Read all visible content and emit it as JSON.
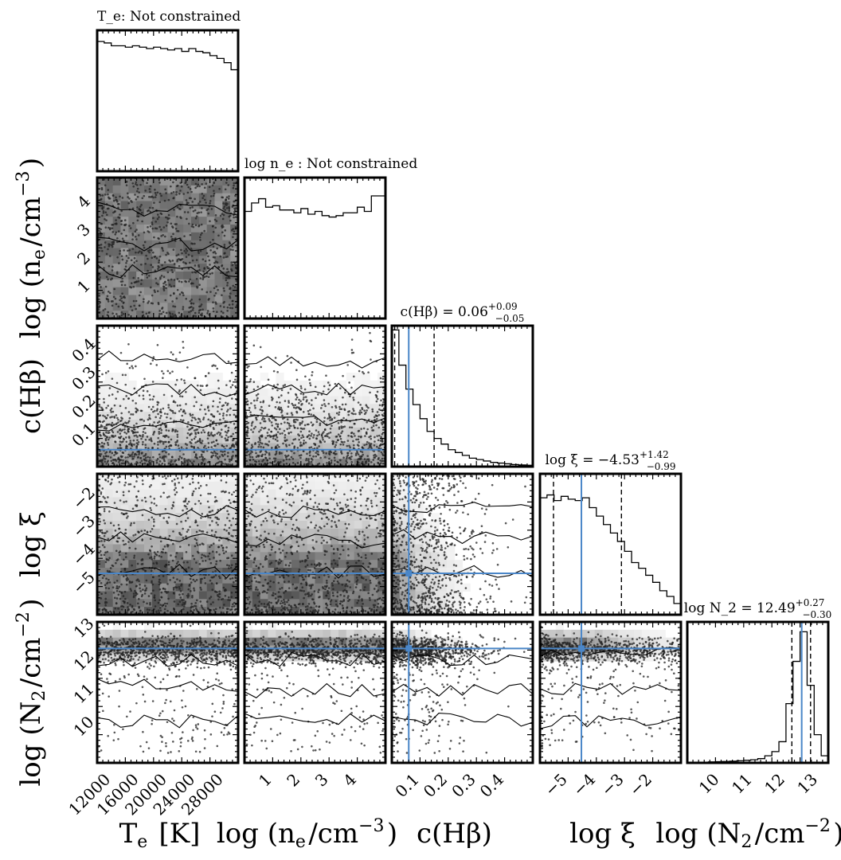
{
  "figure": {
    "type": "corner-plot",
    "marker_color": "#4a86c8",
    "parameters": [
      {
        "key": "Te",
        "label": "T_e [K]",
        "range": [
          10000,
          30000
        ],
        "ticks": [
          12000,
          16000,
          20000,
          24000,
          28000
        ],
        "tick_labels": [
          "12000",
          "16000",
          "20000",
          "24000",
          "28000"
        ]
      },
      {
        "key": "logne",
        "label": "log (n_e/cm^-3)",
        "range": [
          0,
          5
        ],
        "ticks": [
          1,
          2,
          3,
          4
        ],
        "tick_labels": [
          "1",
          "2",
          "3",
          "4"
        ]
      },
      {
        "key": "cHb",
        "label": "c(Hβ)",
        "range": [
          0,
          0.5
        ],
        "ticks": [
          0.1,
          0.2,
          0.3,
          0.4
        ],
        "tick_labels": [
          "0.1",
          "0.2",
          "0.3",
          "0.4"
        ]
      },
      {
        "key": "logxi",
        "label": "log ξ",
        "range": [
          -6,
          -1
        ],
        "ticks": [
          -5,
          -4,
          -3,
          -2
        ],
        "tick_labels": [
          "−5",
          "−4",
          "−3",
          "−2"
        ]
      },
      {
        "key": "logN2",
        "label": "log (N_2/cm^-2)",
        "range": [
          9,
          13.3
        ],
        "ticks": [
          10,
          11,
          12,
          13
        ],
        "tick_labels": [
          "10",
          "11",
          "12",
          "13"
        ]
      }
    ],
    "titles": [
      {
        "param": "Te",
        "text": "T_e: Not constrained"
      },
      {
        "param": "logne",
        "text": "log n_e : Not constrained"
      },
      {
        "param": "cHb",
        "prefix": "c(Hβ) = ",
        "value": "0.06",
        "plus": "+0.09",
        "minus": "−0.05"
      },
      {
        "param": "logxi",
        "prefix": "log ξ = ",
        "value": "−4.53",
        "plus": "+1.42",
        "minus": "−0.99"
      },
      {
        "param": "logN2",
        "prefix": "log N_2 = ",
        "value": "12.49",
        "plus": "+0.27",
        "minus": "−0.30"
      }
    ]
  },
  "chart_data": {
    "type": "corner",
    "truths": {
      "cHb": 0.06,
      "logxi": -4.53,
      "logN2": 12.49
    },
    "quantiles": {
      "cHb": [
        0.01,
        0.15
      ],
      "logxi": [
        -5.52,
        -3.11
      ],
      "logN2": [
        12.19,
        12.76
      ]
    },
    "histograms": {
      "Te": {
        "edges_from": 10000,
        "edges_to": 30000,
        "counts": [
          0.92,
          0.91,
          0.89,
          0.89,
          0.88,
          0.89,
          0.88,
          0.87,
          0.88,
          0.87,
          0.86,
          0.87,
          0.85,
          0.87,
          0.85,
          0.84,
          0.82,
          0.8,
          0.77,
          0.72
        ]
      },
      "logne": {
        "edges_from": 0,
        "edges_to": 5,
        "counts": [
          0.76,
          0.82,
          0.85,
          0.79,
          0.8,
          0.77,
          0.77,
          0.75,
          0.78,
          0.74,
          0.76,
          0.73,
          0.72,
          0.73,
          0.75,
          0.75,
          0.79,
          0.76,
          0.87,
          0.87
        ]
      },
      "cHb": {
        "edges_from": 0,
        "edges_to": 0.5,
        "counts": [
          0.97,
          0.72,
          0.55,
          0.44,
          0.34,
          0.25,
          0.2,
          0.16,
          0.12,
          0.1,
          0.08,
          0.06,
          0.05,
          0.04,
          0.03,
          0.025,
          0.02,
          0.015,
          0.012,
          0.01
        ]
      },
      "logxi": {
        "edges_from": -6,
        "edges_to": -1,
        "counts": [
          0.83,
          0.85,
          0.81,
          0.84,
          0.82,
          0.81,
          0.83,
          0.76,
          0.7,
          0.64,
          0.58,
          0.52,
          0.45,
          0.37,
          0.33,
          0.28,
          0.23,
          0.17,
          0.13,
          0.08
        ]
      },
      "logN2": {
        "edges_from": 9,
        "edges_to": 13.3,
        "counts": [
          0.005,
          0.005,
          0.005,
          0.007,
          0.008,
          0.01,
          0.012,
          0.015,
          0.018,
          0.022,
          0.03,
          0.05,
          0.08,
          0.15,
          0.42,
          0.72,
          0.93,
          0.55,
          0.2,
          0.05
        ]
      }
    }
  }
}
